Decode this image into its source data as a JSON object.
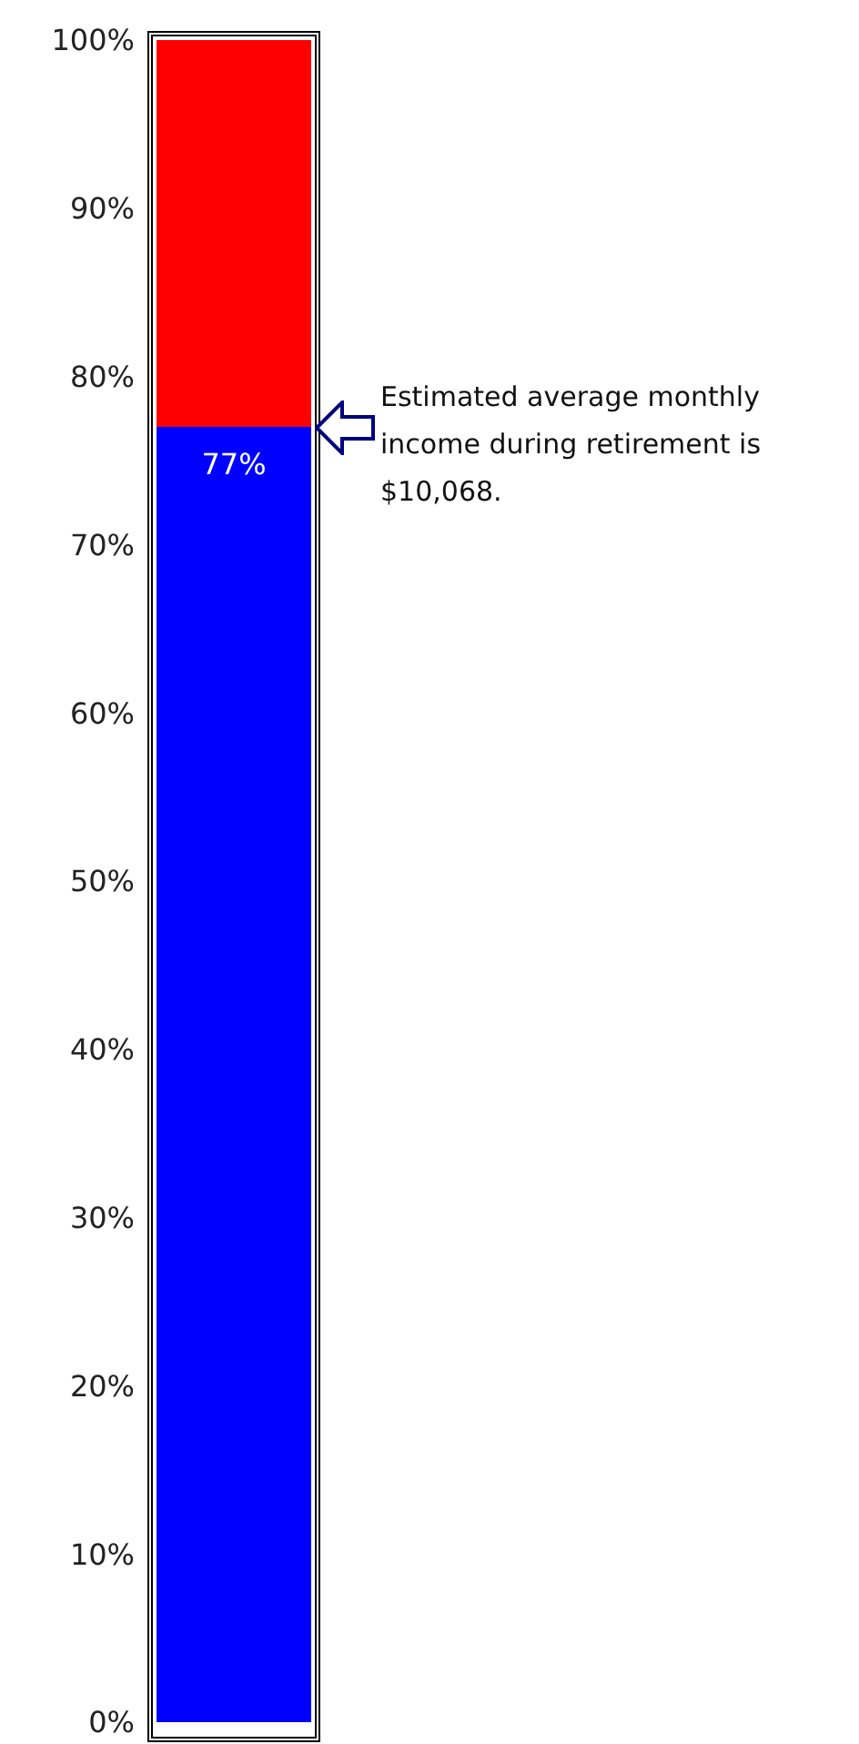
{
  "chart_data": {
    "type": "bar",
    "stacked": true,
    "categories": [
      null
    ],
    "series": [
      {
        "color": "#0000ff",
        "values": [
          77
        ],
        "value_labels": [
          "77%"
        ]
      },
      {
        "color": "#ff0000",
        "values": [
          23
        ],
        "value_labels": [
          null
        ]
      }
    ],
    "ylim": [
      0,
      100
    ],
    "yticks": [
      {
        "value": 0,
        "label": "0%"
      },
      {
        "value": 10,
        "label": "10%"
      },
      {
        "value": 20,
        "label": "20%"
      },
      {
        "value": 30,
        "label": "30%"
      },
      {
        "value": 40,
        "label": "40%"
      },
      {
        "value": 50,
        "label": "50%"
      },
      {
        "value": 60,
        "label": "60%"
      },
      {
        "value": 70,
        "label": "70%"
      },
      {
        "value": 80,
        "label": "80%"
      },
      {
        "value": 90,
        "label": "90%"
      },
      {
        "value": 100,
        "label": "100%"
      }
    ],
    "annotations": [
      "Estimated average monthly income during retirement is $10,068."
    ],
    "legend": false,
    "grid": false
  }
}
